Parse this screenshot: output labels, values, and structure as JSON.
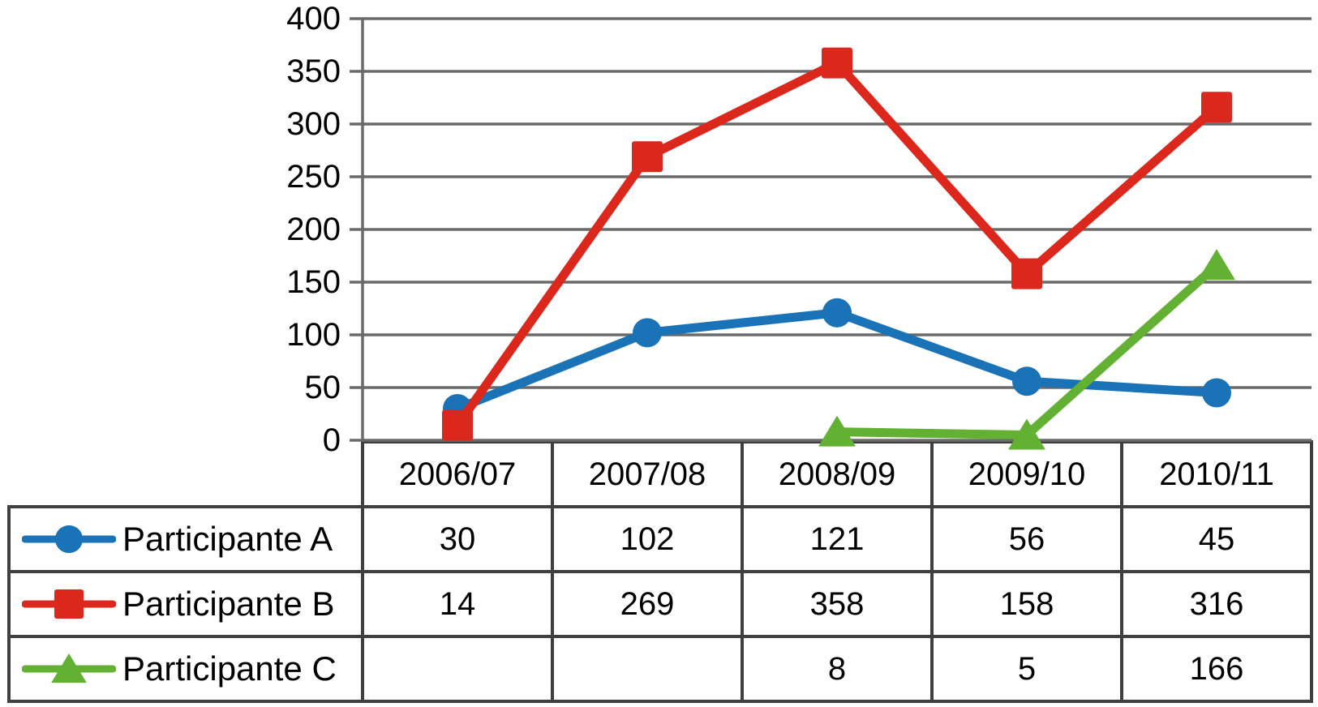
{
  "chart_data": {
    "type": "line",
    "title": "",
    "xlabel": "",
    "ylabel": "",
    "categories": [
      "2006/07",
      "2007/08",
      "2008/09",
      "2009/10",
      "2010/11"
    ],
    "series": [
      {
        "name": "Participante A",
        "marker": "circle",
        "color": "#1a73b6",
        "values": [
          30,
          102,
          121,
          56,
          45
        ]
      },
      {
        "name": "Participante B",
        "marker": "square",
        "color": "#dc281c",
        "values": [
          14,
          269,
          358,
          158,
          316
        ]
      },
      {
        "name": "Participante C",
        "marker": "triangle",
        "color": "#62b133",
        "values": [
          null,
          null,
          8,
          5,
          166
        ]
      }
    ],
    "y_axis": {
      "min": 0,
      "max": 400,
      "step": 50
    },
    "y_tick_labels": [
      "400",
      "350",
      "300",
      "250",
      "200",
      "150",
      "100",
      "50",
      "0"
    ],
    "grid": true,
    "legend_position": "data-table-left",
    "empty_cell_text": "",
    "gridline_color": "#6a6a6a",
    "axis_color": "#6a6a6a",
    "table_border_color": "#3f3f3f",
    "text_color": "#000000"
  }
}
